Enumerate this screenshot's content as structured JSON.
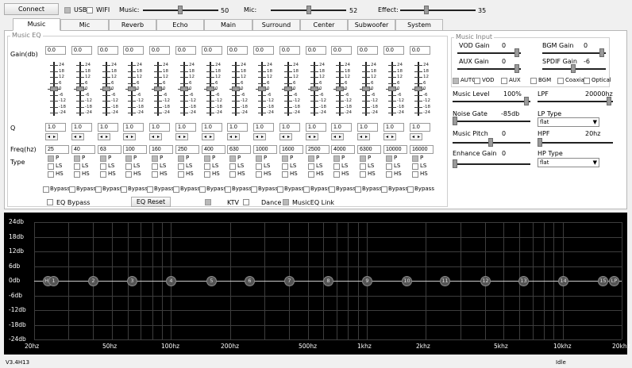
{
  "toolbar": {
    "connect_label": "Connect",
    "usb_label": "USB",
    "wifi_label": "WIFI",
    "music_label": "Music:",
    "music_value": "50",
    "music_level": 0.5,
    "mic_label": "Mic:",
    "mic_value": "52",
    "mic_level": 0.52,
    "effect_label": "Effect:",
    "effect_value": "35",
    "effect_level": 0.35
  },
  "tabs": [
    "Music",
    "Mic",
    "Reverb",
    "Echo",
    "Main",
    "Surround",
    "Center",
    "Subwoofer",
    "System"
  ],
  "music_eq": {
    "title": "Music EQ",
    "gain_label": "Gain(db)",
    "q_label": "Q",
    "freq_label": "Freq(hz)",
    "type_label": "Type",
    "scale": [
      "24",
      "18",
      "12",
      "6",
      "0",
      "-6",
      "-12",
      "-18",
      "-24"
    ],
    "bands": [
      {
        "gain": "0.0",
        "q": "1.0",
        "freq": "25"
      },
      {
        "gain": "0.0",
        "q": "1.0",
        "freq": "40"
      },
      {
        "gain": "0.0",
        "q": "1.0",
        "freq": "63"
      },
      {
        "gain": "0.0",
        "q": "1.0",
        "freq": "100"
      },
      {
        "gain": "0.0",
        "q": "1.0",
        "freq": "160"
      },
      {
        "gain": "0.0",
        "q": "1.0",
        "freq": "250"
      },
      {
        "gain": "0.0",
        "q": "1.0",
        "freq": "400"
      },
      {
        "gain": "0.0",
        "q": "1.0",
        "freq": "630"
      },
      {
        "gain": "0.0",
        "q": "1.0",
        "freq": "1000"
      },
      {
        "gain": "0.0",
        "q": "1.0",
        "freq": "1600"
      },
      {
        "gain": "0.0",
        "q": "1.0",
        "freq": "2500"
      },
      {
        "gain": "0.0",
        "q": "1.0",
        "freq": "4000"
      },
      {
        "gain": "0.0",
        "q": "1.0",
        "freq": "6300"
      },
      {
        "gain": "0.0",
        "q": "1.0",
        "freq": "10000"
      },
      {
        "gain": "0.0",
        "q": "1.0",
        "freq": "16000"
      }
    ],
    "type_p": "P",
    "type_ls": "LS",
    "type_hs": "HS",
    "bypass_label": "Bypass",
    "eq_bypass_label": "EQ Bypass",
    "eq_reset_label": "EQ Reset",
    "ktv_label": "KTV",
    "dance_label": "Dance",
    "musiceq_link_label": "MusicEQ Link"
  },
  "music_input": {
    "title": "Music Input",
    "vod_gain_label": "VOD Gain",
    "vod_gain_value": "0",
    "vod_gain_level": 1.0,
    "bgm_gain_label": "BGM Gain",
    "bgm_gain_value": "0",
    "bgm_gain_level": 1.0,
    "aux_gain_label": "AUX Gain",
    "aux_gain_value": "0",
    "aux_gain_level": 1.0,
    "spdif_gain_label": "SPDIF Gain",
    "spdif_gain_value": "-6",
    "spdif_gain_level": 0.5,
    "sources": [
      "AUTO",
      "VOD",
      "AUX",
      "BGM",
      "Coaxial",
      "Optical"
    ]
  },
  "right_panel": {
    "music_level_label": "Music Level",
    "music_level_value": "100%",
    "music_level_level": 1.0,
    "lpf_label": "LPF",
    "lpf_value": "20000hz",
    "lpf_level": 1.0,
    "noise_gate_label": "Noise Gate",
    "noise_gate_value": "-85db",
    "noise_gate_level": 0.0,
    "lp_type_label": "LP Type",
    "lp_type_value": "flat",
    "music_pitch_label": "Music Pitch",
    "music_pitch_value": "0",
    "music_pitch_level": 0.5,
    "hpf_label": "HPF",
    "hpf_value": "20hz",
    "hpf_level": 0.0,
    "enhance_gain_label": "Enhance Gain",
    "enhance_gain_value": "0",
    "enhance_gain_level": 0.0,
    "hp_type_label": "HP Type",
    "hp_type_value": "flat"
  },
  "graph": {
    "y_labels": [
      "24db",
      "18db",
      "12db",
      "6db",
      "0db",
      "-6db",
      "-12db",
      "-18db",
      "-24db"
    ],
    "x_labels": [
      "20hz",
      "50hz",
      "100hz",
      "200hz",
      "500hz",
      "1khz",
      "2khz",
      "5khz",
      "10khz",
      "20khz"
    ],
    "nodes": [
      "HP",
      "1",
      "2",
      "3",
      "4",
      "5",
      "6",
      "7",
      "8",
      "9",
      "10",
      "11",
      "12",
      "13",
      "14",
      "15",
      "LP"
    ]
  },
  "status": {
    "version": "V3.4H13",
    "state": "Idle"
  }
}
